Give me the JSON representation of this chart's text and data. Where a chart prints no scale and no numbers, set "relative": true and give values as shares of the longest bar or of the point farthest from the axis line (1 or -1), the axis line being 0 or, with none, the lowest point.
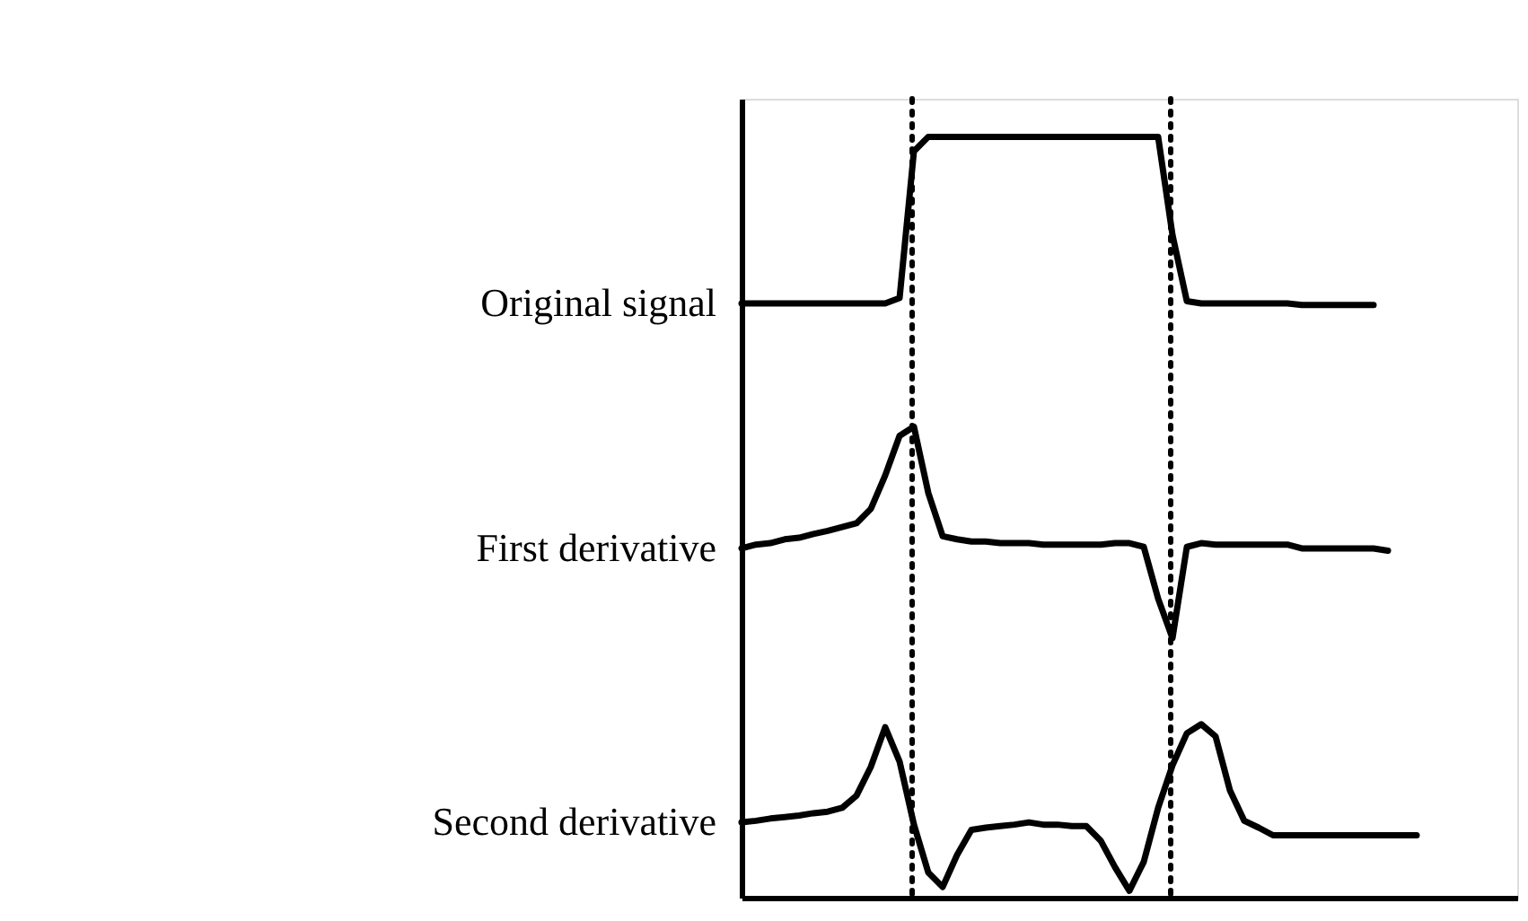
{
  "chart_data": {
    "type": "line",
    "relative": true,
    "marker": "none",
    "line_style": "solid",
    "categories": [
      null,
      null,
      null,
      null,
      null,
      null,
      null,
      null,
      null,
      null,
      null,
      null,
      null,
      null,
      null,
      null,
      null,
      null,
      null,
      null,
      null,
      null,
      null,
      null,
      null,
      null,
      null,
      null,
      null,
      null,
      null,
      null,
      null,
      null,
      null,
      null,
      null,
      null,
      null,
      null,
      null,
      null,
      null,
      null,
      null,
      null,
      null,
      null,
      null
    ],
    "series": [
      {
        "name": "Original signal",
        "color": "#000000",
        "values": [
          0.781,
          0.781,
          0.781,
          0.781,
          0.781,
          0.781,
          0.781,
          0.781,
          0.781,
          0.781,
          0.781,
          0.788,
          0.981,
          1.0,
          1.0,
          1.0,
          1.0,
          1.0,
          1.0,
          1.0,
          1.0,
          1.0,
          1.0,
          1.0,
          1.0,
          1.0,
          1.0,
          1.0,
          1.0,
          1.0,
          0.871,
          0.784,
          0.781,
          0.781,
          0.781,
          0.781,
          0.781,
          0.781,
          0.781,
          0.779,
          0.779,
          0.779,
          0.779,
          0.779,
          0.779,
          null,
          null,
          null,
          null
        ]
      },
      {
        "name": "First derivative",
        "color": "#000000",
        "values": [
          0.459,
          0.464,
          0.466,
          0.471,
          0.473,
          0.478,
          0.482,
          0.487,
          0.492,
          0.511,
          0.555,
          0.607,
          0.619,
          0.532,
          0.475,
          0.471,
          0.468,
          0.468,
          0.466,
          0.466,
          0.466,
          0.464,
          0.464,
          0.464,
          0.464,
          0.464,
          0.466,
          0.466,
          0.461,
          0.393,
          0.341,
          0.461,
          0.466,
          0.464,
          0.464,
          0.464,
          0.464,
          0.464,
          0.464,
          0.459,
          0.459,
          0.459,
          0.459,
          0.459,
          0.459,
          0.456,
          null,
          null,
          null
        ]
      },
      {
        "name": "Second derivative",
        "color": "#000000",
        "values": [
          0.099,
          0.101,
          0.104,
          0.106,
          0.108,
          0.111,
          0.113,
          0.118,
          0.134,
          0.172,
          0.224,
          0.179,
          0.096,
          0.033,
          0.014,
          0.056,
          0.089,
          0.092,
          0.094,
          0.096,
          0.099,
          0.096,
          0.096,
          0.094,
          0.094,
          0.075,
          0.04,
          0.009,
          0.047,
          0.118,
          0.174,
          0.216,
          0.228,
          0.212,
          0.141,
          0.101,
          0.092,
          0.082,
          0.082,
          0.082,
          0.082,
          0.082,
          0.082,
          0.082,
          0.082,
          0.082,
          0.082,
          0.082,
          null
        ]
      }
    ]
  }
}
